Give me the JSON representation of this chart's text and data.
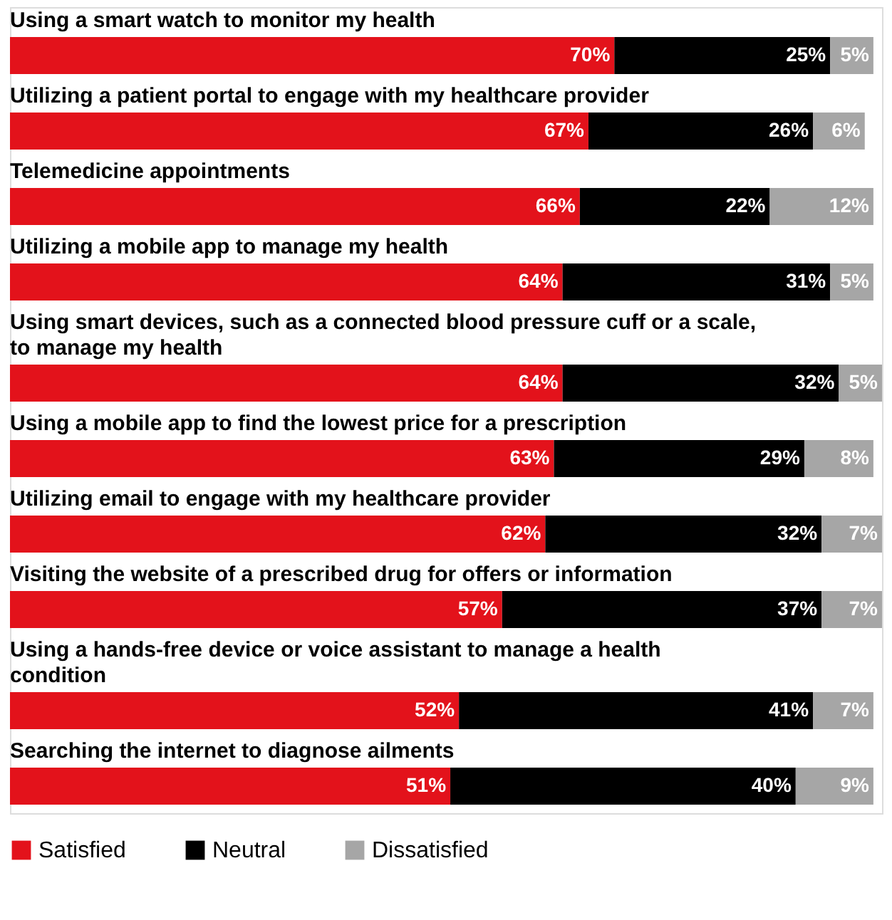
{
  "chart_data": {
    "type": "bar",
    "orientation": "horizontal",
    "stacked": true,
    "categories": [
      "Using a smart watch to monitor my health",
      "Utilizing a patient portal to engage with my healthcare provider",
      "Telemedicine appointments",
      "Utilizing a mobile app to manage my health",
      "Using smart devices, such as a connected blood pressure cuff or a scale, to manage my health",
      "Using a mobile app to find the lowest price for a prescription",
      "Utilizing email to engage with my healthcare provider",
      "Visiting the website of a prescribed drug for offers or information",
      "Using a hands-free device or voice assistant to manage a health condition",
      "Searching the internet to diagnose ailments"
    ],
    "series": [
      {
        "name": "Satisfied",
        "color": "#e3121b",
        "values": [
          70,
          67,
          66,
          64,
          64,
          63,
          62,
          57,
          52,
          51
        ],
        "value_labels": [
          "70%",
          "67%",
          "66%",
          "64%",
          "64%",
          "63%",
          "62%",
          "57%",
          "52%",
          "51%"
        ]
      },
      {
        "name": "Neutral",
        "color": "#000000",
        "values": [
          25,
          26,
          22,
          31,
          32,
          29,
          32,
          37,
          41,
          40
        ],
        "value_labels": [
          "25%",
          "26%",
          "22%",
          "31%",
          "32%",
          "29%",
          "32%",
          "37%",
          "41%",
          "40%"
        ]
      },
      {
        "name": "Dissatisfied",
        "color": "#a6a6a6",
        "values": [
          5,
          6,
          12,
          5,
          5,
          8,
          7,
          7,
          7,
          9
        ],
        "value_labels": [
          "5%",
          "6%",
          "12%",
          "5%",
          "5%",
          "8%",
          "7%",
          "7%",
          "7%",
          "9%"
        ]
      }
    ],
    "xlim": [
      0,
      101
    ],
    "tick_labels": false,
    "legend": "bottom left"
  }
}
